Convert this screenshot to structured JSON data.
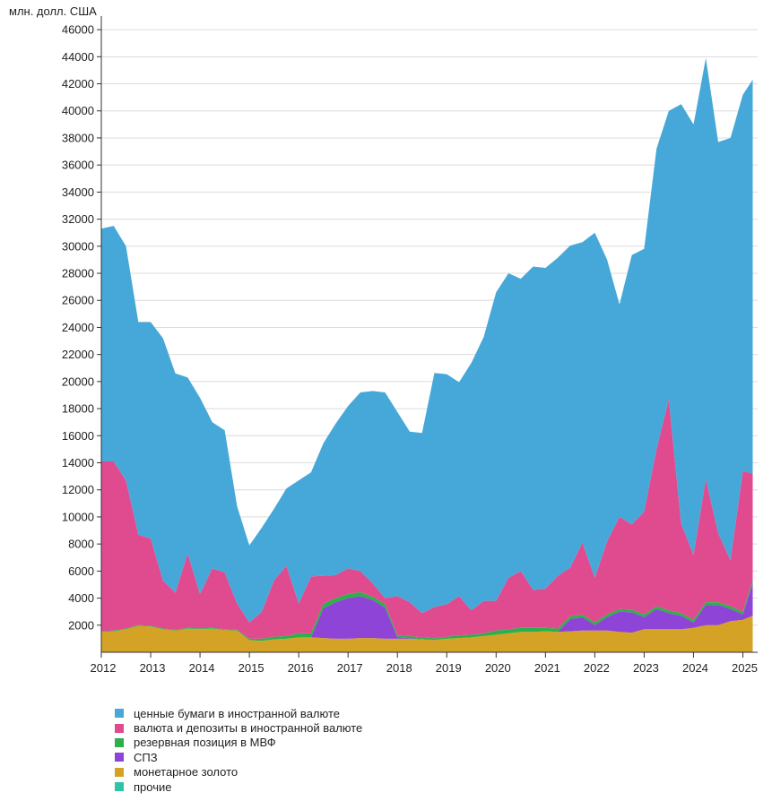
{
  "chart_data": {
    "type": "area",
    "stacked": true,
    "ylabel": "млн. долл. США",
    "ylim": [
      0,
      47000
    ],
    "yticks": [
      2000,
      4000,
      6000,
      8000,
      10000,
      12000,
      14000,
      16000,
      18000,
      20000,
      22000,
      24000,
      26000,
      28000,
      30000,
      32000,
      34000,
      36000,
      38000,
      40000,
      42000,
      44000,
      46000
    ],
    "xlim": [
      2012.0,
      2025.3
    ],
    "xticks": [
      "2012",
      "2013",
      "2014",
      "2015",
      "2016",
      "2017",
      "2018",
      "2019",
      "2020",
      "2021",
      "2022",
      "2023",
      "2024",
      "2025"
    ],
    "grid": "horizontal",
    "legend_position": "bottom-left",
    "x": [
      2012.0,
      2012.25,
      2012.5,
      2012.75,
      2013.0,
      2013.25,
      2013.5,
      2013.75,
      2014.0,
      2014.25,
      2014.5,
      2014.75,
      2015.0,
      2015.25,
      2015.5,
      2015.75,
      2016.0,
      2016.25,
      2016.5,
      2016.75,
      2017.0,
      2017.25,
      2017.5,
      2017.75,
      2018.0,
      2018.25,
      2018.5,
      2018.75,
      2019.0,
      2019.25,
      2019.5,
      2019.75,
      2020.0,
      2020.25,
      2020.5,
      2020.75,
      2021.0,
      2021.25,
      2021.5,
      2021.75,
      2022.0,
      2022.25,
      2022.5,
      2022.75,
      2023.0,
      2023.25,
      2023.5,
      2023.75,
      2024.0,
      2024.25,
      2024.5,
      2024.75,
      2025.0,
      2025.2
    ],
    "series": [
      {
        "name": "прочие",
        "color": "#2ec4a8",
        "values": [
          0,
          0,
          0,
          0,
          0,
          0,
          0,
          0,
          0,
          0,
          0,
          0,
          0,
          0,
          0,
          0,
          0,
          0,
          0,
          0,
          0,
          0,
          0,
          0,
          0,
          0,
          0,
          0,
          0,
          0,
          0,
          0,
          0,
          0,
          0,
          0,
          0,
          0,
          0,
          0,
          0,
          0,
          0,
          0,
          0,
          0,
          0,
          0,
          0,
          0,
          0,
          0,
          0,
          0
        ]
      },
      {
        "name": "монетарное золото",
        "color": "#d4a326",
        "values": [
          1500,
          1550,
          1700,
          1950,
          1900,
          1700,
          1600,
          1750,
          1700,
          1750,
          1650,
          1600,
          900,
          850,
          950,
          1000,
          1100,
          1100,
          1050,
          1000,
          1000,
          1050,
          1050,
          1000,
          1000,
          1000,
          950,
          900,
          1000,
          1050,
          1100,
          1200,
          1300,
          1400,
          1500,
          1500,
          1550,
          1500,
          1550,
          1600,
          1600,
          1600,
          1500,
          1450,
          1700,
          1700,
          1700,
          1700,
          1800,
          2000,
          2000,
          2300,
          2400,
          2700
        ]
      },
      {
        "name": "СПЗ",
        "color": "#8e44d6",
        "values": [
          0,
          0,
          0,
          0,
          0,
          0,
          0,
          0,
          0,
          0,
          0,
          0,
          0,
          0,
          0,
          0,
          0,
          0,
          2200,
          2700,
          3000,
          3100,
          2800,
          2300,
          100,
          50,
          30,
          20,
          0,
          0,
          0,
          0,
          0,
          0,
          0,
          0,
          0,
          0,
          900,
          1000,
          400,
          1000,
          1500,
          1500,
          900,
          1500,
          1200,
          1000,
          400,
          1500,
          1500,
          900,
          400,
          2400
        ]
      },
      {
        "name": "резервная позиция в МВФ",
        "color": "#2bb04a",
        "values": [
          60,
          60,
          60,
          60,
          60,
          60,
          60,
          60,
          60,
          60,
          60,
          60,
          100,
          150,
          200,
          200,
          300,
          300,
          350,
          300,
          300,
          300,
          250,
          250,
          150,
          150,
          120,
          120,
          150,
          200,
          200,
          200,
          300,
          300,
          300,
          300,
          250,
          250,
          200,
          200,
          200,
          200,
          200,
          200,
          200,
          200,
          200,
          200,
          200,
          200,
          200,
          200,
          200,
          200
        ]
      },
      {
        "name": "валюта и депозиты в иностранной валюте",
        "color": "#e04b8f",
        "values": [
          12540,
          12490,
          10940,
          6690,
          6440,
          3540,
          2740,
          5490,
          2540,
          4390,
          4190,
          1940,
          1200,
          2000,
          4150,
          5200,
          2200,
          4200,
          2050,
          1700,
          1900,
          1550,
          1000,
          450,
          2900,
          2500,
          1800,
          2300,
          2400,
          2900,
          1800,
          2400,
          2200,
          3800,
          4200,
          2800,
          2900,
          3900,
          3600,
          5300,
          3300,
          5400,
          6800,
          6300,
          7600,
          11600,
          15600,
          6600,
          4800,
          9100,
          5100,
          3400,
          10400,
          7900
        ]
      },
      {
        "name": "ценные бумаги в иностранной валюте",
        "color": "#46a8d8",
        "values": [
          17200,
          17400,
          17300,
          15700,
          16000,
          17900,
          16200,
          13000,
          14500,
          10800,
          10500,
          7200,
          5700,
          6200,
          5300,
          5700,
          9100,
          7700,
          9800,
          11200,
          12000,
          13200,
          14200,
          15200,
          13600,
          12600,
          13300,
          17300,
          17000,
          15800,
          18300,
          19500,
          22800,
          22500,
          21600,
          23900,
          23700,
          23500,
          23800,
          22200,
          25500,
          20800,
          15700,
          19900,
          19400,
          22200,
          21300,
          31000,
          31800,
          31100,
          28900,
          31200,
          27800,
          29100
        ]
      }
    ]
  },
  "legend_title": ""
}
